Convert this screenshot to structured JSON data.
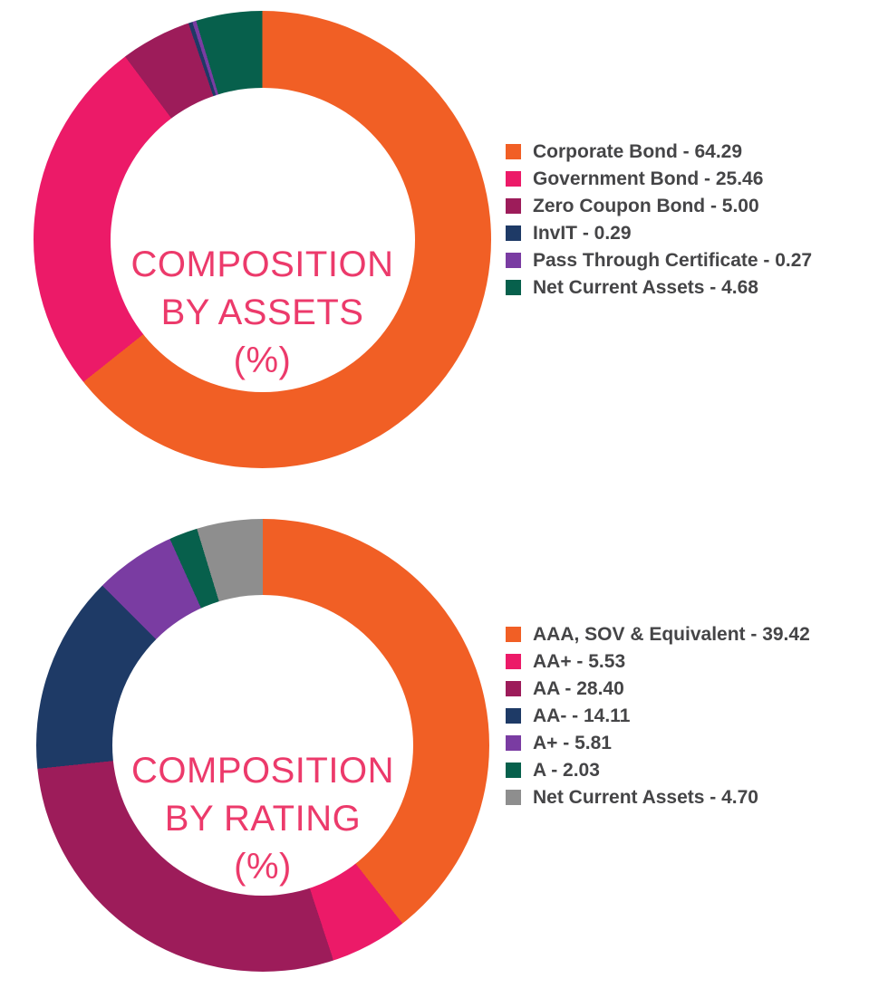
{
  "theme": {
    "background": "#FFFFFF",
    "title_color": "#EC3A6B",
    "legend_text_color": "#454547"
  },
  "chart_data": [
    {
      "type": "pie",
      "subtype": "donut",
      "title": "COMPOSITION BY ASSETS (%)",
      "title_lines": [
        "COMPOSITION",
        "BY ASSETS",
        "(%)"
      ],
      "legend_position": "right",
      "start_angle_deg": 0,
      "direction": "clockwise",
      "categories": [
        "Corporate Bond",
        "Government Bond",
        "Zero Coupon Bond",
        "InvIT",
        "Pass Through Certificate",
        "Net Current Assets"
      ],
      "values": [
        64.29,
        25.46,
        5.0,
        0.29,
        0.27,
        4.68
      ],
      "colors": [
        "#F15F25",
        "#EC1A68",
        "#9D1C5A",
        "#1E3A66",
        "#7A3CA2",
        "#07604C"
      ],
      "legend_labels": [
        "Corporate Bond - 64.29",
        "Government Bond - 25.46",
        "Zero Coupon Bond - 5.00",
        "InvIT - 0.29",
        "Pass Through Certificate - 0.27",
        "Net Current Assets - 4.68"
      ]
    },
    {
      "type": "pie",
      "subtype": "donut",
      "title": "COMPOSITION BY RATING (%)",
      "title_lines": [
        "COMPOSITION",
        "BY RATING",
        "(%)"
      ],
      "legend_position": "right",
      "start_angle_deg": 0,
      "direction": "clockwise",
      "categories": [
        "AAA, SOV & Equivalent",
        "AA+",
        "AA",
        "AA-",
        "A+",
        "A",
        "Net Current Assets"
      ],
      "values": [
        39.42,
        5.53,
        28.4,
        14.11,
        5.81,
        2.03,
        4.7
      ],
      "colors": [
        "#F15F25",
        "#EC1A68",
        "#9D1C5A",
        "#1E3A66",
        "#7A3CA2",
        "#07604C",
        "#8E8E8E"
      ],
      "legend_labels": [
        "AAA, SOV & Equivalent - 39.42",
        "AA+ - 5.53",
        "AA - 28.40",
        "AA- - 14.11",
        "A+ - 5.81",
        "A - 2.03",
        "Net Current Assets - 4.70"
      ]
    }
  ]
}
